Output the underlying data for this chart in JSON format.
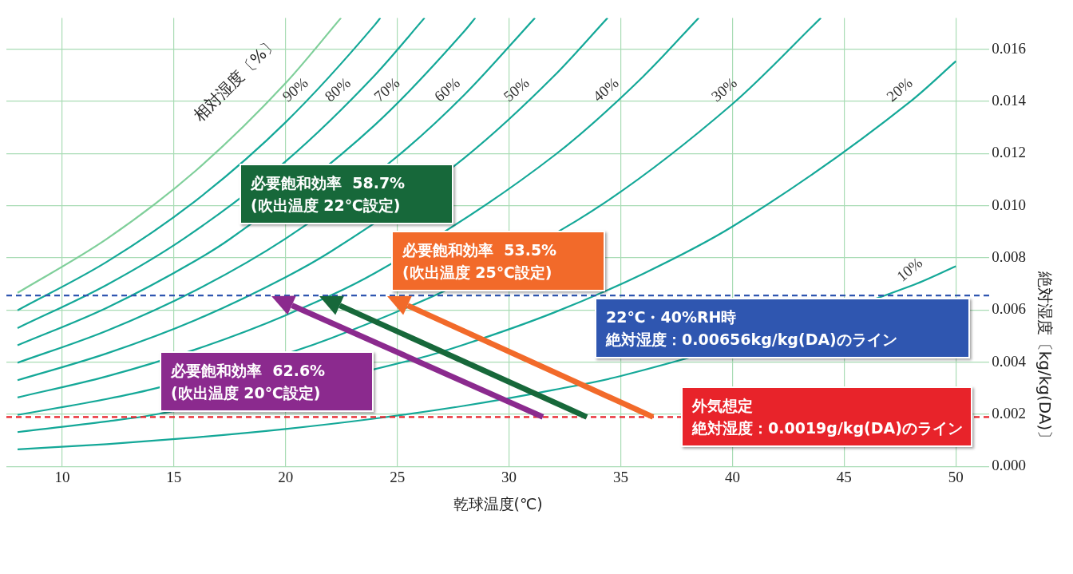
{
  "chart_data": {
    "type": "line",
    "xlabel": "乾球温度(℃)",
    "ylabel": "絶対湿度〔kg/kg(DA)〕",
    "xlim": [
      7.5,
      51.5
    ],
    "xticks": [
      10,
      15,
      20,
      25,
      30,
      35,
      40,
      45,
      50
    ],
    "ylim": [
      0,
      0.0172
    ],
    "yticks": [
      {
        "value": 0,
        "label": "0.000"
      },
      0.002,
      0.004,
      0.006,
      0.008,
      {
        "value": 0.01,
        "label": "0.010"
      },
      0.012,
      0.014,
      0.016
    ],
    "grid": true,
    "series": [
      {
        "color": "#7fcf9a",
        "x": [
          8,
          12,
          16,
          20,
          22.48
        ],
        "values": [
          0.00666,
          0.00873,
          0.01136,
          0.0147,
          0.0172
        ]
      },
      {
        "color": "#14a898",
        "x": [
          8,
          12,
          16,
          20,
          24,
          24.24
        ],
        "values": [
          0.00599,
          0.00785,
          0.01021,
          0.0132,
          0.01694,
          0.0172
        ]
      },
      {
        "color": "#14a898",
        "x": [
          8,
          12,
          15.5,
          20,
          24,
          26.22
        ],
        "values": [
          0.00531,
          0.00697,
          0.00877,
          0.0117,
          0.01501,
          0.0172
        ]
      },
      {
        "color": "#14a898",
        "x": [
          8,
          12,
          16,
          17.5,
          24,
          28,
          28.49
        ],
        "values": [
          0.00465,
          0.00609,
          0.00791,
          0.00872,
          0.0131,
          0.01669,
          0.0172
        ]
      },
      {
        "color": "#14a898",
        "x": [
          8,
          12,
          16,
          20,
          25,
          28,
          31.16
        ],
        "values": [
          0.00398,
          0.00521,
          0.00677,
          0.00874,
          0.01189,
          0.01425,
          0.0172
        ]
      },
      {
        "color": "#14a898",
        "x": [
          8,
          12,
          16,
          20,
          22,
          28,
          32,
          34.41
        ],
        "values": [
          0.00331,
          0.00434,
          0.00563,
          0.00726,
          0.00823,
          0.01183,
          0.01496,
          0.0172
        ]
      },
      {
        "color": "#14a898",
        "x": [
          8,
          12,
          16,
          20,
          24,
          32,
          36,
          38.49
        ],
        "values": [
          0.00265,
          0.00346,
          0.0045,
          0.0058,
          0.00742,
          0.01191,
          0.01495,
          0.0172
        ]
      },
      {
        "color": "#14a898",
        "x": [
          8,
          12,
          14,
          22,
          33,
          40,
          43.96
        ],
        "values": [
          0.00198,
          0.00259,
          0.00296,
          0.00491,
          0.00941,
          0.0139,
          0.0172
        ]
      },
      {
        "color": "#14a898",
        "x": [
          8,
          12,
          14,
          26,
          28,
          32,
          36,
          40,
          48,
          50
        ],
        "values": [
          0.00132,
          0.00173,
          0.00197,
          0.00416,
          0.00468,
          0.0059,
          0.00739,
          0.0092,
          0.01402,
          0.01554
        ]
      },
      {
        "color": "#14a898",
        "x": [
          8,
          12,
          16,
          20,
          24,
          28,
          32,
          35,
          48,
          50
        ],
        "values": [
          0.00066,
          0.00086,
          0.00112,
          0.00144,
          0.00184,
          0.00233,
          0.00294,
          0.00347,
          0.00693,
          0.00768
        ]
      }
    ],
    "ref_lines": [
      {
        "axis": "y",
        "value": 0.00656,
        "label": "22℃・40%RH時",
        "color": "#2f56b0",
        "line_style": "dashed"
      },
      {
        "axis": "y",
        "value": 0.0019,
        "label": "外気想定",
        "color": "#e8232a",
        "line_style": "dashed"
      }
    ],
    "annotations": [
      "相対湿度〔%〕",
      "必要飽和効率  62.6%\n(吹出温度 20℃設定)",
      "必要飽和効率  58.7%\n(吹出温度 22℃設定)",
      "必要飽和効率  53.5%\n(吹出温度 25℃設定)",
      "絶対湿度：0.00656kg/kg(DA)のライン",
      "絶対湿度：0.0019g/kg(DA)のライン",
      {
        "text": "90%",
        "x": 21,
        "y": 0.014
      },
      {
        "text": "80%",
        "x": 22.9,
        "y": 0.014
      },
      {
        "text": "70%",
        "x": 25.1,
        "y": 0.014
      },
      {
        "text": "60%",
        "x": 27.8,
        "y": 0.014
      },
      {
        "text": "50%",
        "x": 30.9,
        "y": 0.014
      },
      {
        "text": "40%",
        "x": 34.9,
        "y": 0.014
      },
      {
        "text": "30%",
        "x": 40.2,
        "y": 0.014
      },
      {
        "text": "20%",
        "x": 48.05,
        "y": 0.014
      },
      {
        "text": "10%",
        "x": 48.5,
        "y": 0.0071
      }
    ]
  }
}
